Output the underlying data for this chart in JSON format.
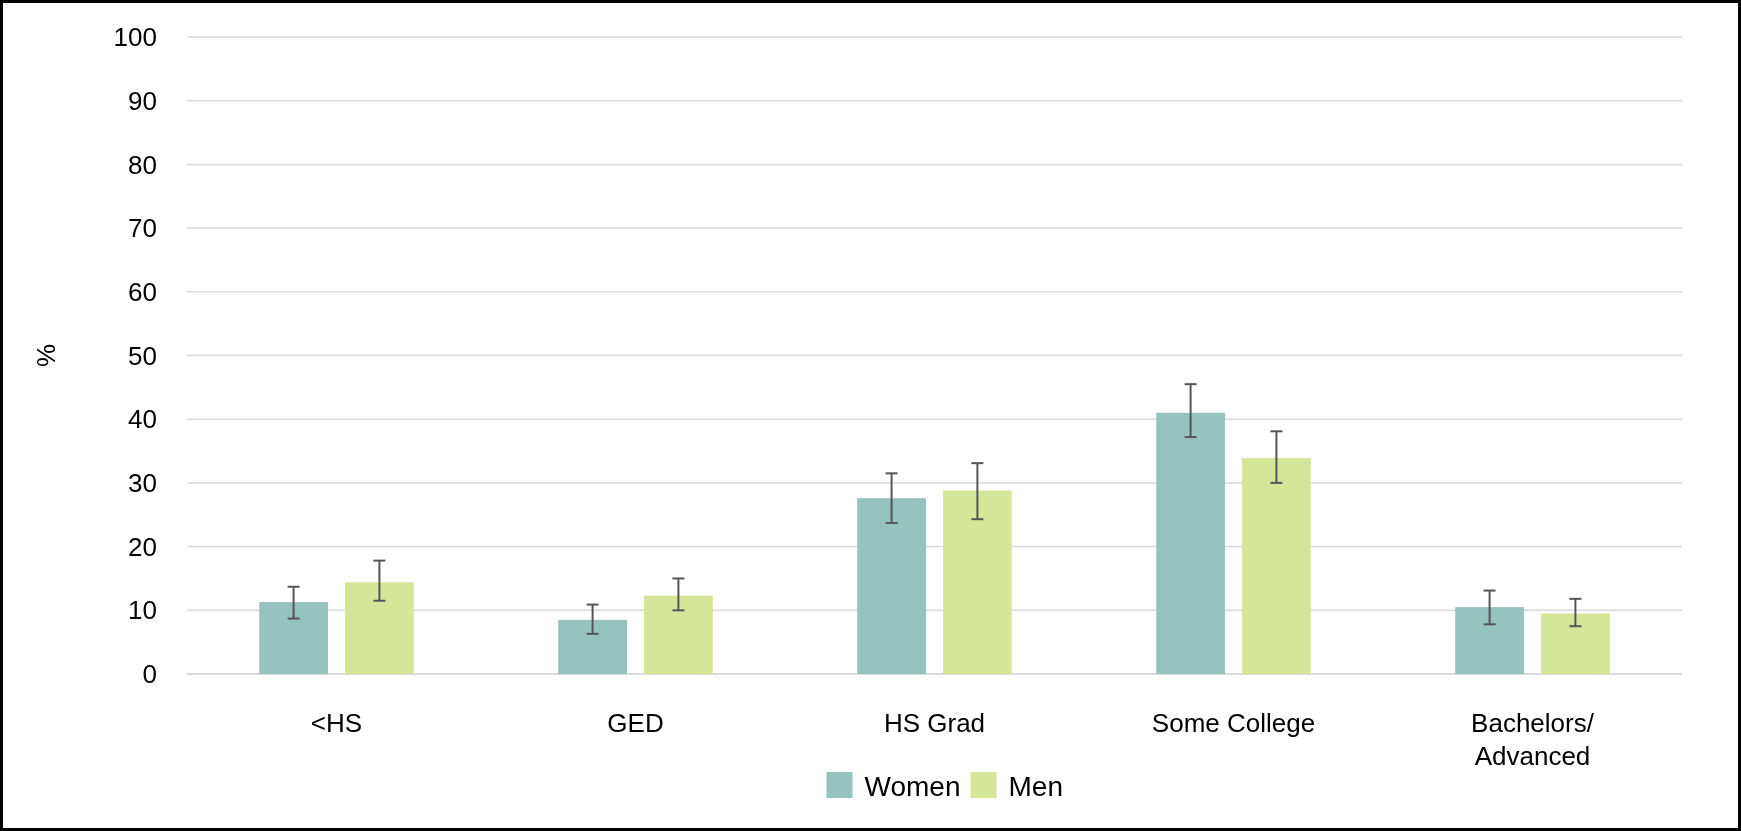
{
  "chart_data": {
    "type": "bar",
    "ylabel": "%",
    "categories": [
      "<HS",
      "GED",
      "HS Grad",
      "Some College",
      "Bachelors/ Advanced"
    ],
    "series": [
      {
        "name": "Women",
        "color": "#96c3bd",
        "values": [
          11.3,
          8.5,
          27.6,
          41.0,
          10.5
        ],
        "errors": [
          [
            8.7,
            13.7
          ],
          [
            6.3,
            10.9
          ],
          [
            23.7,
            31.5
          ],
          [
            37.2,
            45.5
          ],
          [
            7.8,
            13.1
          ]
        ]
      },
      {
        "name": "Men",
        "color": "#d6e698",
        "values": [
          14.4,
          12.3,
          28.8,
          33.9,
          9.5
        ],
        "errors": [
          [
            11.5,
            17.8
          ],
          [
            10.0,
            15.0
          ],
          [
            24.3,
            33.1
          ],
          [
            30.0,
            38.1
          ],
          [
            7.5,
            11.8
          ]
        ]
      }
    ],
    "ylim": [
      0,
      100
    ],
    "yticks": [
      0,
      10,
      20,
      30,
      40,
      50,
      60,
      70,
      80,
      90,
      100
    ],
    "grid": "y",
    "legend": "bottom"
  }
}
